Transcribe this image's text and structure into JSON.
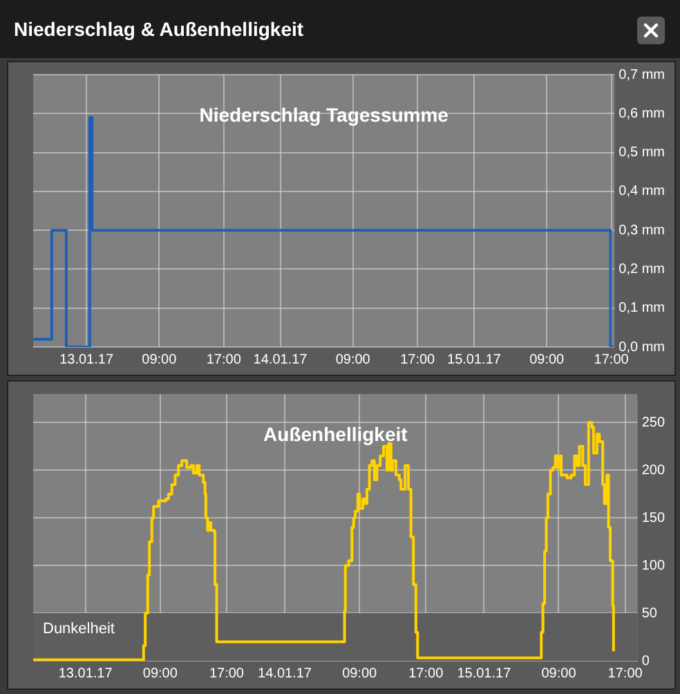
{
  "chart_data": [
    {
      "type": "step",
      "title": "Niederschlag & Außenhelligkeit",
      "subtitle": "Niederschlag Tagessumme",
      "x": [
        "--01-12T17:24",
        "--01-12T19:42",
        "--01-12T21:30",
        "--01-13T00:24",
        "--01-13T00:42",
        "--01-15T16:54",
        "--01-15T17:18"
      ],
      "series": [
        {
          "color": "#1f5fb5",
          "values": [
            0.02,
            0.3,
            0,
            0.59,
            0.3,
            0,
            0
          ]
        }
      ],
      "xlim": [
        "--01-12T17:24",
        "--01-15T17:24"
      ],
      "xticks": [
        {
          "value": "--01-13",
          "label": "13.01.17"
        },
        {
          "value": "--01-13T09:00",
          "label": "09:00"
        },
        {
          "value": "--01-13T17:00",
          "label": "17:00"
        },
        {
          "value": "--01-14",
          "label": "14.01.17"
        },
        {
          "value": "--01-14T09:00",
          "label": "09:00"
        },
        {
          "value": "--01-14T17:00",
          "label": "17:00"
        },
        {
          "value": "--01-15",
          "label": "15.01.17"
        },
        {
          "value": "--01-15T09:00",
          "label": "09:00"
        },
        {
          "value": "--01-15T17:00",
          "label": "17:00"
        }
      ],
      "ylim": [
        0,
        0.7
      ],
      "yticks": [
        {
          "value": 0,
          "label": "0,0 mm"
        },
        {
          "value": 0.1,
          "label": "0,1 mm"
        },
        {
          "value": 0.2,
          "label": "0,2 mm"
        },
        {
          "value": 0.3,
          "label": "0,3 mm"
        },
        {
          "value": 0.4,
          "label": "0,4 mm"
        },
        {
          "value": 0.5,
          "label": "0,5 mm"
        },
        {
          "value": 0.6,
          "label": "0,6 mm"
        },
        {
          "value": 0.7,
          "label": "0,7 mm"
        }
      ],
      "grid": true,
      "legend": false,
      "marker": "none",
      "line_style": "solid"
    },
    {
      "type": "step",
      "title": "Außenhelligkeit",
      "x": [
        "--01-12T17:42",
        "--01-13T06:54",
        "--01-13T07:00",
        "--01-13T07:12",
        "--01-13T07:30",
        "--01-13T07:42",
        "--01-13T08:00",
        "--01-13T08:12",
        "--01-13T08:48",
        "--01-13T09:42",
        "--01-13T10:00",
        "--01-13T10:24",
        "--01-13T10:48",
        "--01-13T11:12",
        "--01-13T11:36",
        "--01-13T12:12",
        "--01-13T12:42",
        "--01-13T13:00",
        "--01-13T13:24",
        "--01-13T13:42",
        "--01-13T14:12",
        "--01-13T14:24",
        "--01-13T14:30",
        "--01-13T14:42",
        "--01-13T14:54",
        "--01-13T15:06",
        "--01-13T15:30",
        "--01-13T15:36",
        "--01-13T15:48",
        "--01-14T07:06",
        "--01-14T07:12",
        "--01-14T07:18",
        "--01-14T07:42",
        "--01-14T08:06",
        "--01-14T08:18",
        "--01-14T08:30",
        "--01-14T08:48",
        "--01-14T09:00",
        "--01-14T09:24",
        "--01-14T09:36",
        "--01-14T09:54",
        "--01-14T10:12",
        "--01-14T10:30",
        "--01-14T10:48",
        "--01-14T11:06",
        "--01-14T11:30",
        "--01-14T11:54",
        "--01-14T12:18",
        "--01-14T12:30",
        "--01-14T12:48",
        "--01-14T13:00",
        "--01-14T13:24",
        "--01-14T13:48",
        "--01-14T14:00",
        "--01-14T14:30",
        "--01-14T14:54",
        "--01-14T15:12",
        "--01-14T15:30",
        "--01-14T15:48",
        "--01-14T16:00",
        "--01-15T06:48",
        "--01-15T06:54",
        "--01-15T07:06",
        "--01-15T07:18",
        "--01-15T07:30",
        "--01-15T07:42",
        "--01-15T08:00",
        "--01-15T08:18",
        "--01-15T08:36",
        "--01-15T08:54",
        "--01-15T09:12",
        "--01-15T09:18",
        "--01-15T10:00",
        "--01-15T10:30",
        "--01-15T10:54",
        "--01-15T11:12",
        "--01-15T11:30",
        "--01-15T11:54",
        "--01-15T12:12",
        "--01-15T12:36",
        "--01-15T13:00",
        "--01-15T13:12",
        "--01-15T13:36",
        "--01-15T13:54",
        "--01-15T14:18",
        "--01-15T14:30",
        "--01-15T14:48",
        "--01-15T15:00",
        "--01-15T15:12",
        "--01-15T15:30",
        "--01-15T15:36"
      ],
      "series": [
        {
          "color": "#ffd200",
          "values": [
            1,
            1,
            16,
            50,
            90,
            125,
            150,
            162,
            168,
            170,
            175,
            185,
            195,
            205,
            210,
            203,
            205,
            197,
            205,
            195,
            187,
            175,
            150,
            137,
            145,
            137,
            136,
            80,
            20,
            20,
            52,
            100,
            105,
            140,
            150,
            157,
            175,
            160,
            170,
            165,
            180,
            205,
            210,
            190,
            205,
            215,
            225,
            200,
            228,
            200,
            210,
            195,
            190,
            180,
            205,
            180,
            130,
            80,
            30,
            3,
            3,
            30,
            60,
            115,
            150,
            175,
            200,
            203,
            215,
            203,
            215,
            195,
            192,
            195,
            215,
            205,
            225,
            205,
            185,
            250,
            245,
            218,
            238,
            230,
            185,
            165,
            195,
            140,
            105,
            58,
            10
          ]
        }
      ],
      "xlim": [
        "--01-12T17:42",
        "--01-15T18:30"
      ],
      "xticks": [
        {
          "value": "--01-13",
          "label": "13.01.17"
        },
        {
          "value": "--01-13T09:00",
          "label": "09:00"
        },
        {
          "value": "--01-13T17:00",
          "label": "17:00"
        },
        {
          "value": "--01-14",
          "label": "14.01.17"
        },
        {
          "value": "--01-14T09:00",
          "label": "09:00"
        },
        {
          "value": "--01-14T17:00",
          "label": "17:00"
        },
        {
          "value": "--01-15",
          "label": "15.01.17"
        },
        {
          "value": "--01-15T09:00",
          "label": "09:00"
        },
        {
          "value": "--01-15T17:00",
          "label": "17:00"
        }
      ],
      "ylim": [
        0,
        280
      ],
      "yticks": [
        0,
        50,
        100,
        150,
        200,
        250
      ],
      "bands": [
        {
          "axis": "y",
          "from": 0,
          "to": 50,
          "label": "Dunkelheit",
          "color": "#5e5e5e"
        }
      ],
      "grid": true,
      "legend": false,
      "marker": "none",
      "line_style": "solid"
    }
  ]
}
